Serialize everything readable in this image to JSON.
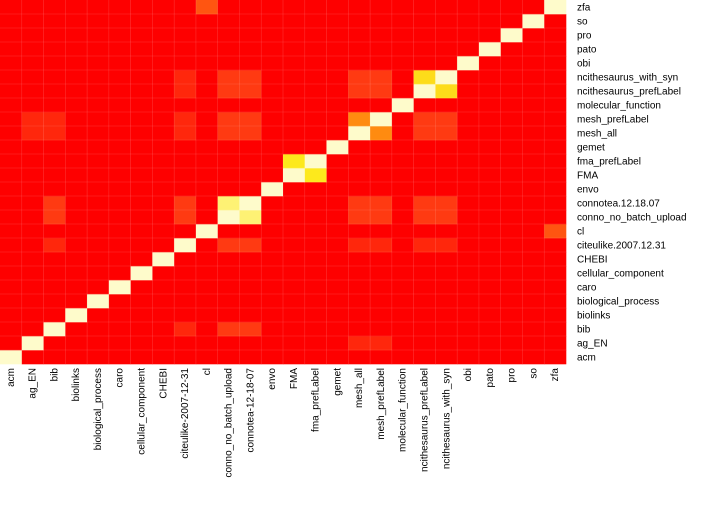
{
  "chart_data": {
    "type": "heatmap",
    "title": "",
    "xlabel": "",
    "ylabel": "",
    "grid": true,
    "legend": "none",
    "color_scale": {
      "description": "red (low) to orange/yellow to pale yellow (high)",
      "stops": [
        "#fe0000",
        "#ff3a12",
        "#ff8b10",
        "#fde91c",
        "#fefbcb"
      ],
      "diagonal_color": "#fefbcb"
    },
    "x_categories": [
      "acm",
      "ag_EN",
      "bib",
      "biolinks",
      "biological_process",
      "caro",
      "cellular_component",
      "CHEBI",
      "citeulike-2007-12-31",
      "cl",
      "conno_no_batch_upload",
      "connotea-12-18-07",
      "envo",
      "FMA",
      "fma_prefLabel",
      "gemet",
      "mesh_all",
      "mesh_prefLabel",
      "molecular_function",
      "ncithesaurus_prefLabel",
      "ncithesaurus_with_syn",
      "obi",
      "pato",
      "pro",
      "so",
      "zfa"
    ],
    "y_categories": [
      "acm",
      "ag_EN",
      "bib",
      "biolinks",
      "biological_process",
      "caro",
      "cellular_component",
      "CHEBI",
      "citeulike.2007.12.31",
      "cl",
      "conno_no_batch_upload",
      "connotea.12.18.07",
      "envo",
      "FMA",
      "fma_prefLabel",
      "gemet",
      "mesh_all",
      "mesh_prefLabel",
      "molecular_function",
      "ncithesaurus_prefLabel",
      "ncithesaurus_with_syn",
      "obi",
      "pato",
      "pro",
      "so",
      "zfa"
    ],
    "values": [
      [
        1,
        0,
        0,
        0,
        0,
        0,
        0,
        0,
        0,
        0,
        0,
        0,
        0,
        0,
        0,
        0,
        0,
        0,
        0,
        0,
        0,
        0,
        0,
        0,
        0,
        0
      ],
      [
        0,
        1,
        0,
        0,
        0,
        0,
        0,
        0,
        0,
        0,
        0,
        0,
        0,
        0,
        0,
        0,
        0.1,
        0.1,
        0,
        0,
        0,
        0,
        0,
        0,
        0,
        0
      ],
      [
        0,
        0,
        1,
        0,
        0,
        0,
        0,
        0,
        0.1,
        0,
        0.15,
        0.15,
        0,
        0,
        0,
        0,
        0,
        0,
        0,
        0,
        0,
        0,
        0,
        0,
        0,
        0
      ],
      [
        0,
        0,
        0,
        1,
        0,
        0,
        0,
        0,
        0,
        0,
        0,
        0,
        0,
        0,
        0,
        0,
        0,
        0,
        0,
        0,
        0,
        0,
        0,
        0,
        0,
        0
      ],
      [
        0,
        0,
        0,
        0,
        1,
        0,
        0,
        0,
        0,
        0,
        0,
        0,
        0,
        0,
        0,
        0,
        0,
        0,
        0,
        0,
        0,
        0,
        0,
        0,
        0,
        0
      ],
      [
        0,
        0,
        0,
        0,
        0,
        1,
        0,
        0,
        0,
        0,
        0,
        0,
        0,
        0,
        0,
        0,
        0,
        0,
        0,
        0,
        0,
        0,
        0,
        0,
        0,
        0
      ],
      [
        0,
        0,
        0,
        0,
        0,
        0,
        1,
        0,
        0,
        0,
        0,
        0,
        0,
        0,
        0,
        0,
        0,
        0,
        0,
        0,
        0,
        0,
        0,
        0,
        0,
        0
      ],
      [
        0,
        0,
        0,
        0,
        0,
        0,
        0,
        1,
        0,
        0,
        0,
        0,
        0,
        0,
        0,
        0,
        0,
        0,
        0,
        0,
        0,
        0,
        0,
        0,
        0,
        0
      ],
      [
        0,
        0,
        0.1,
        0,
        0,
        0,
        0,
        0,
        1,
        0,
        0.15,
        0.15,
        0,
        0,
        0,
        0,
        0.1,
        0.1,
        0,
        0.1,
        0.1,
        0,
        0,
        0,
        0,
        0
      ],
      [
        0,
        0,
        0,
        0,
        0,
        0,
        0,
        0,
        0,
        1,
        0,
        0,
        0,
        0,
        0,
        0,
        0,
        0,
        0,
        0,
        0,
        0,
        0,
        0,
        0,
        0.25
      ],
      [
        0,
        0,
        0.15,
        0,
        0,
        0,
        0,
        0,
        0.15,
        0,
        1,
        0.9,
        0,
        0,
        0,
        0,
        0.15,
        0.15,
        0,
        0.15,
        0.15,
        0,
        0,
        0,
        0,
        0
      ],
      [
        0,
        0,
        0.15,
        0,
        0,
        0,
        0,
        0,
        0.15,
        0,
        0.9,
        1,
        0,
        0,
        0,
        0,
        0.15,
        0.15,
        0,
        0.15,
        0.15,
        0,
        0,
        0,
        0,
        0
      ],
      [
        0,
        0,
        0,
        0,
        0,
        0,
        0,
        0,
        0,
        0,
        0,
        0,
        1,
        0,
        0,
        0,
        0,
        0,
        0,
        0,
        0,
        0,
        0,
        0,
        0,
        0
      ],
      [
        0,
        0,
        0,
        0,
        0,
        0,
        0,
        0,
        0,
        0,
        0,
        0,
        0,
        1,
        0.8,
        0,
        0,
        0,
        0,
        0,
        0,
        0,
        0,
        0,
        0,
        0
      ],
      [
        0,
        0,
        0,
        0,
        0,
        0,
        0,
        0,
        0,
        0,
        0,
        0,
        0,
        0.8,
        1,
        0,
        0,
        0,
        0,
        0,
        0,
        0,
        0,
        0,
        0,
        0
      ],
      [
        0,
        0,
        0,
        0,
        0,
        0,
        0,
        0,
        0,
        0,
        0,
        0,
        0,
        0,
        0,
        1,
        0,
        0,
        0,
        0,
        0,
        0,
        0,
        0,
        0,
        0
      ],
      [
        0,
        0.1,
        0.1,
        0,
        0,
        0,
        0,
        0,
        0.1,
        0,
        0.15,
        0.15,
        0,
        0,
        0,
        0,
        1,
        0.45,
        0,
        0.15,
        0.15,
        0,
        0,
        0,
        0,
        0
      ],
      [
        0,
        0.1,
        0.1,
        0,
        0,
        0,
        0,
        0,
        0.1,
        0,
        0.15,
        0.15,
        0,
        0,
        0,
        0,
        0.45,
        1,
        0,
        0.15,
        0.15,
        0,
        0,
        0,
        0,
        0
      ],
      [
        0,
        0,
        0,
        0,
        0,
        0,
        0,
        0,
        0,
        0,
        0,
        0,
        0,
        0,
        0,
        0,
        0,
        0,
        1,
        0,
        0,
        0,
        0,
        0,
        0,
        0
      ],
      [
        0,
        0,
        0,
        0,
        0,
        0,
        0,
        0,
        0.1,
        0,
        0.15,
        0.15,
        0,
        0,
        0,
        0,
        0.15,
        0.15,
        0,
        1,
        0.75,
        0,
        0,
        0,
        0,
        0
      ],
      [
        0,
        0,
        0,
        0,
        0,
        0,
        0,
        0,
        0.1,
        0,
        0.15,
        0.15,
        0,
        0,
        0,
        0,
        0.15,
        0.15,
        0,
        0.75,
        1,
        0,
        0,
        0,
        0,
        0
      ],
      [
        0,
        0,
        0,
        0,
        0,
        0,
        0,
        0,
        0,
        0,
        0,
        0,
        0,
        0,
        0,
        0,
        0,
        0,
        0,
        0,
        0,
        1,
        0,
        0,
        0,
        0
      ],
      [
        0,
        0,
        0,
        0,
        0,
        0,
        0,
        0,
        0,
        0,
        0,
        0,
        0,
        0,
        0,
        0,
        0,
        0,
        0,
        0,
        0,
        0,
        1,
        0,
        0,
        0
      ],
      [
        0,
        0,
        0,
        0,
        0,
        0,
        0,
        0,
        0,
        0,
        0,
        0,
        0,
        0,
        0,
        0,
        0,
        0,
        0,
        0,
        0,
        0,
        0,
        1,
        0,
        0
      ],
      [
        0,
        0,
        0,
        0,
        0,
        0,
        0,
        0,
        0,
        0,
        0,
        0,
        0,
        0,
        0,
        0,
        0,
        0,
        0,
        0,
        0,
        0,
        0,
        0,
        1,
        0
      ],
      [
        0,
        0,
        0,
        0,
        0,
        0,
        0,
        0,
        0,
        0.25,
        0,
        0,
        0,
        0,
        0,
        0,
        0,
        0,
        0,
        0,
        0,
        0,
        0,
        0,
        0,
        1
      ]
    ]
  }
}
